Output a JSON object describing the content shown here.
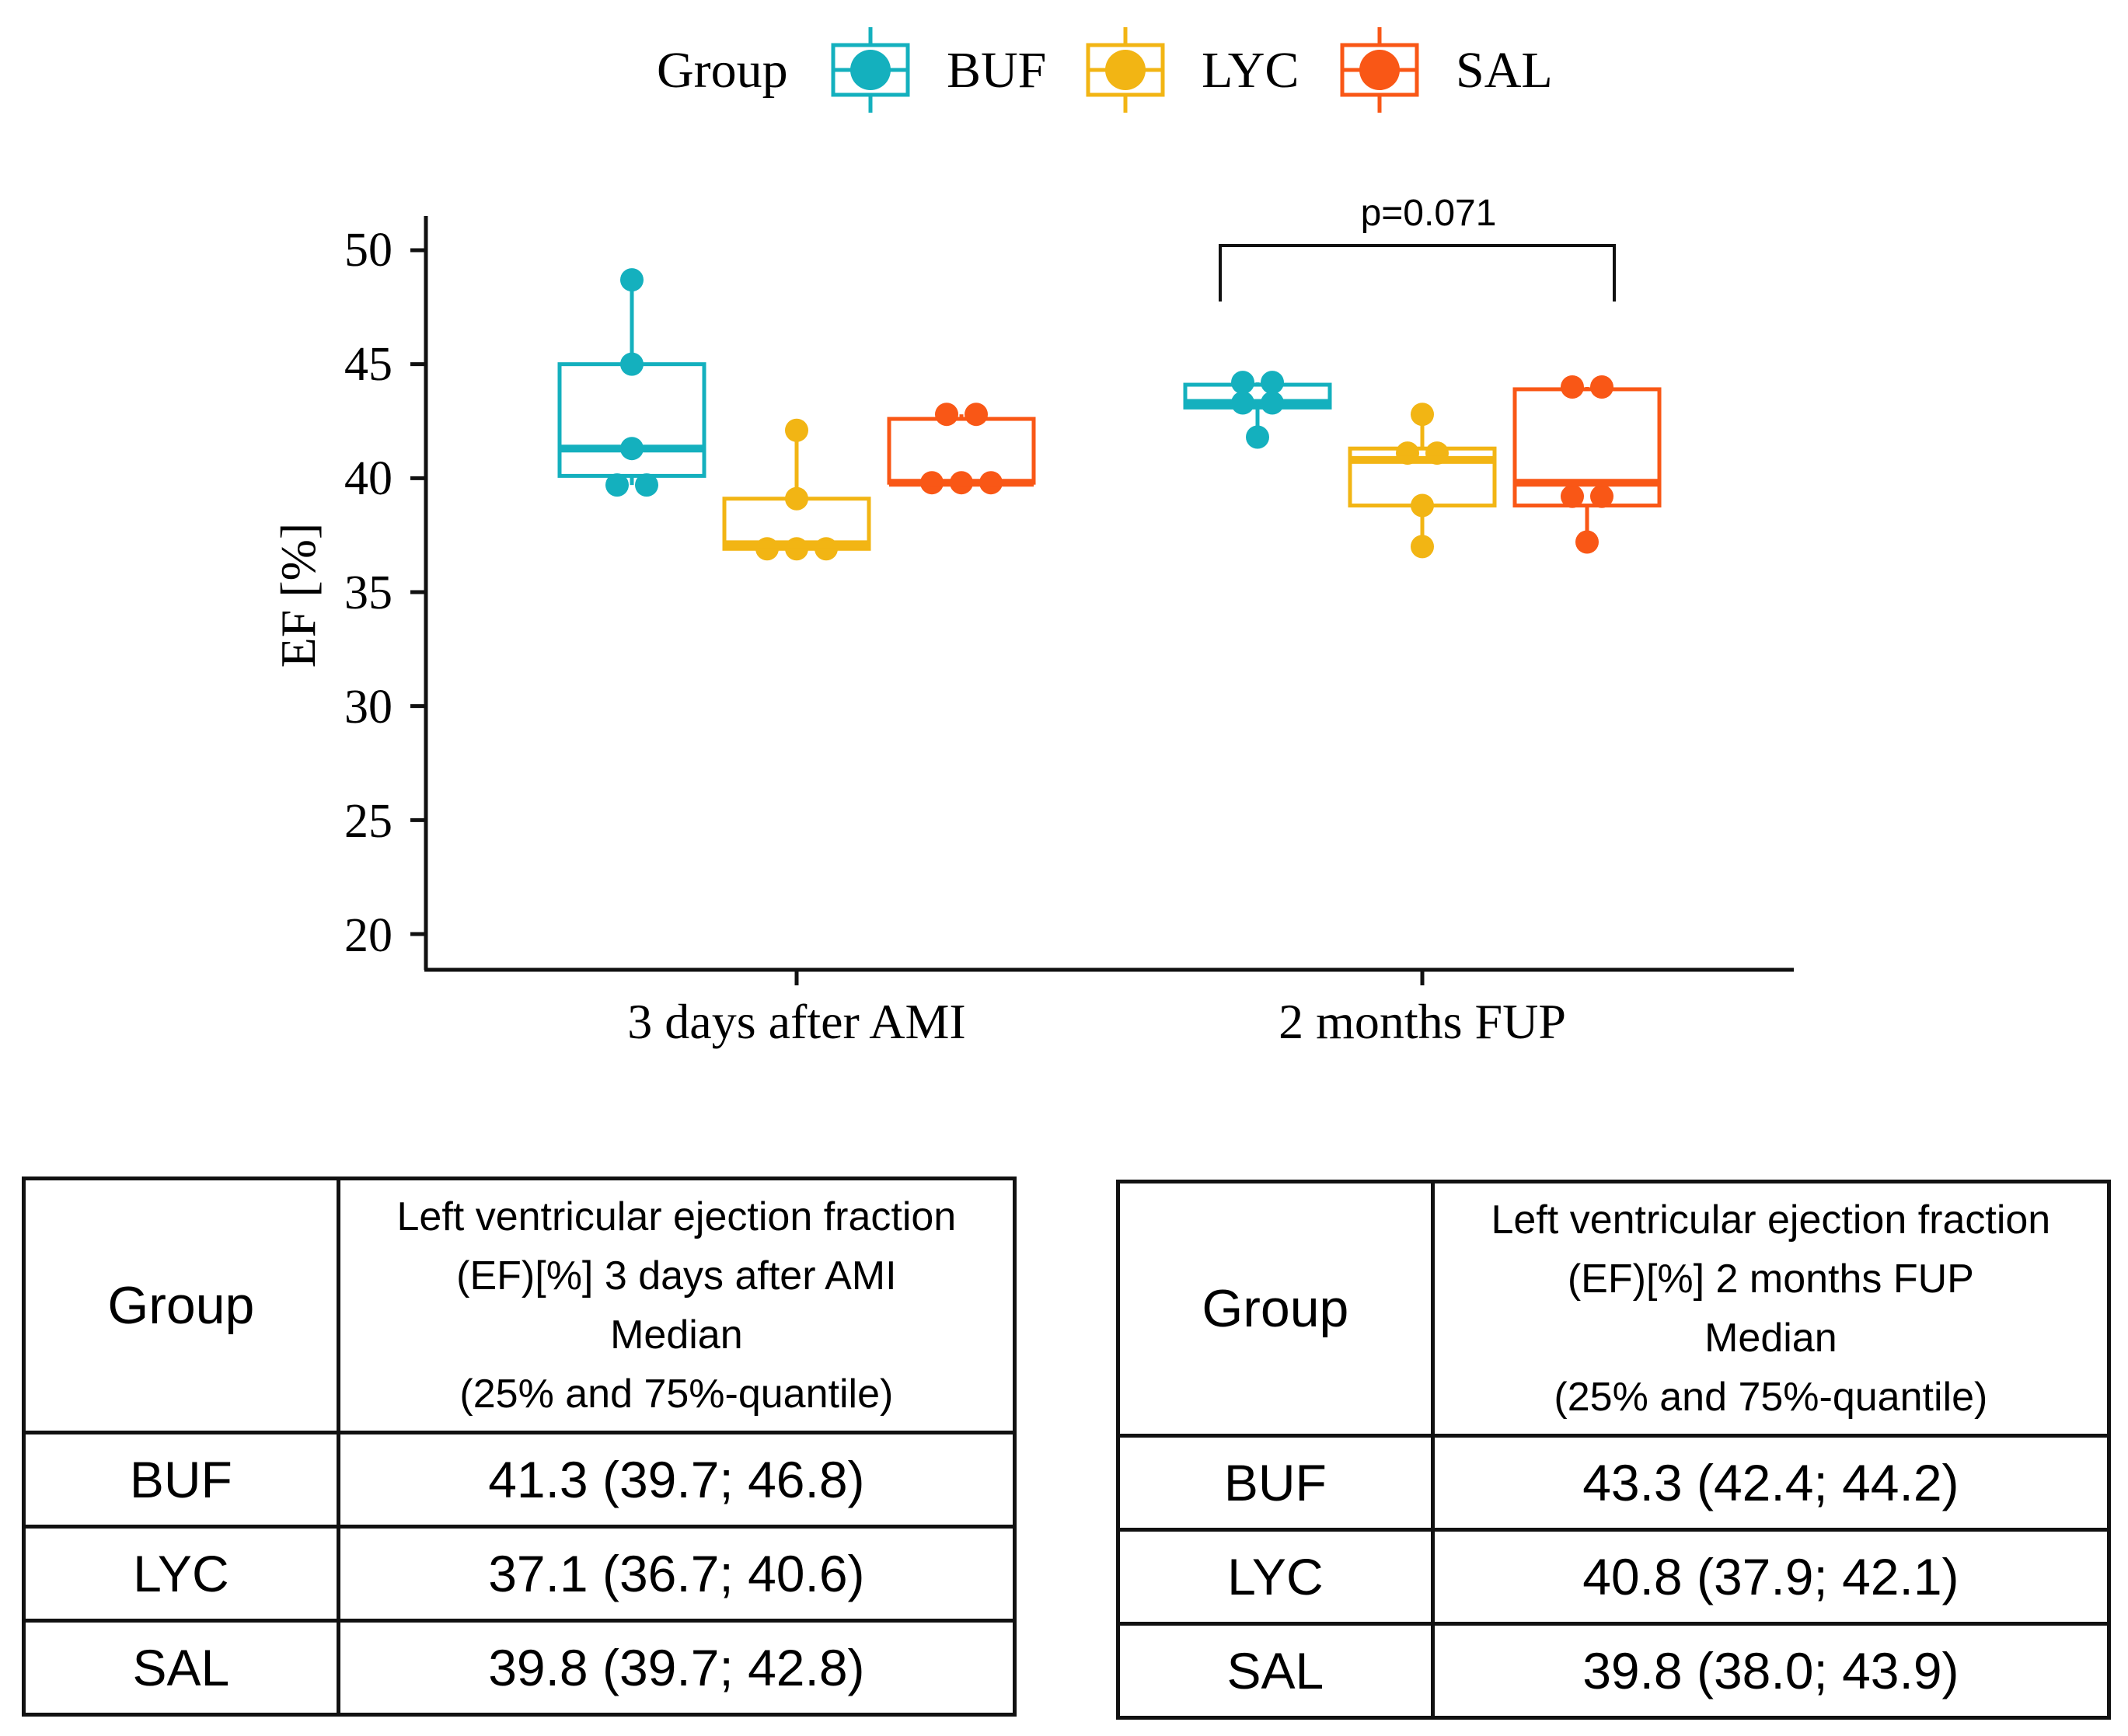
{
  "colors": {
    "BUF": "#14B0BE",
    "LYC": "#F2B514",
    "SAL": "#F95716",
    "axis": "#111111"
  },
  "chart_data": {
    "type": "boxplot",
    "ylabel": "EF [%]",
    "xlabel": "",
    "ylim": [
      20,
      50
    ],
    "yticks": [
      "20",
      "25",
      "30",
      "35",
      "40",
      "45",
      "50"
    ],
    "categories": [
      "3 days after AMI",
      "2 months FUP"
    ],
    "legend": {
      "title": "Group",
      "position": "top",
      "entries": [
        "BUF",
        "LYC",
        "SAL"
      ]
    },
    "series": [
      {
        "name": "BUF",
        "boxes": [
          {
            "category": "3 days after AMI",
            "min": 39.7,
            "q1": 40.1,
            "median": 41.3,
            "q3": 45.0,
            "max": 48.7,
            "points": [
              48.7,
              45.0,
              41.3,
              39.7,
              39.7
            ]
          },
          {
            "category": "2 months FUP",
            "min": 41.8,
            "q1": 43.1,
            "median": 43.3,
            "q3": 44.1,
            "max": 44.2,
            "points": [
              44.2,
              44.2,
              43.3,
              43.3,
              41.8
            ]
          }
        ]
      },
      {
        "name": "LYC",
        "boxes": [
          {
            "category": "3 days after AMI",
            "min": 36.9,
            "q1": 36.9,
            "median": 37.1,
            "q3": 39.1,
            "max": 42.1,
            "points": [
              42.1,
              39.1,
              36.9,
              36.9,
              36.9
            ]
          },
          {
            "category": "2 months FUP",
            "min": 37.0,
            "q1": 38.8,
            "median": 40.8,
            "q3": 41.3,
            "max": 42.8,
            "points": [
              42.8,
              41.1,
              41.1,
              38.8,
              37.0
            ]
          }
        ]
      },
      {
        "name": "SAL",
        "boxes": [
          {
            "category": "3 days after AMI",
            "min": 39.7,
            "q1": 39.8,
            "median": 39.8,
            "q3": 42.6,
            "max": 42.8,
            "points": [
              42.8,
              42.8,
              39.8,
              39.8,
              39.8
            ]
          },
          {
            "category": "2 months FUP",
            "min": 37.2,
            "q1": 38.8,
            "median": 39.8,
            "q3": 43.9,
            "max": 44.0,
            "points": [
              44.0,
              44.0,
              39.2,
              39.2,
              37.2
            ]
          }
        ]
      }
    ],
    "annotations": [
      {
        "text": "p=0.071",
        "category": "2 months FUP",
        "from": "BUF",
        "to": "SAL"
      }
    ]
  },
  "tables": [
    {
      "header": {
        "group": "Group",
        "desc_lines": [
          "Left ventricular ejection fraction",
          "(EF)[%] 3 days after AMI",
          "Median",
          "(25% and 75%-quantile)"
        ]
      },
      "rows": [
        {
          "group": "BUF",
          "value": "41.3 (39.7; 46.8)"
        },
        {
          "group": "LYC",
          "value": "37.1 (36.7; 40.6)"
        },
        {
          "group": "SAL",
          "value": "39.8 (39.7; 42.8)"
        }
      ]
    },
    {
      "header": {
        "group": "Group",
        "desc_lines": [
          "Left ventricular ejection fraction",
          "(EF)[%] 2 months FUP",
          "Median",
          "(25% and 75%-quantile)"
        ]
      },
      "rows": [
        {
          "group": "BUF",
          "value": "43.3 (42.4; 44.2)"
        },
        {
          "group": "LYC",
          "value": "40.8 (37.9; 42.1)"
        },
        {
          "group": "SAL",
          "value": "39.8 (38.0; 43.9)"
        }
      ]
    }
  ]
}
